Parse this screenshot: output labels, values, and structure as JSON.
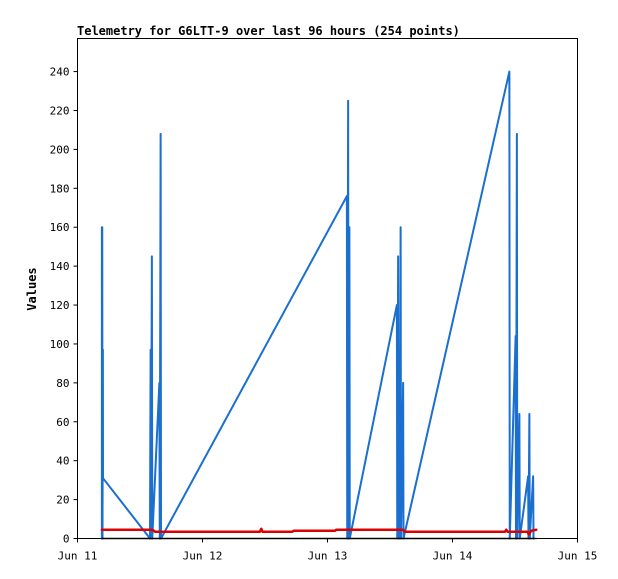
{
  "chart_data": {
    "type": "line",
    "title": "Telemetry for G6LTT-9 over last 96 hours (254 points)",
    "xlabel": "",
    "ylabel": "Values",
    "x_ticks": [
      "Jun 11",
      "Jun 12",
      "Jun 13",
      "Jun 14",
      "Jun 15"
    ],
    "y_ticks": [
      "0",
      "20",
      "40",
      "60",
      "80",
      "100",
      "120",
      "140",
      "160",
      "180",
      "200",
      "220",
      "240"
    ],
    "xlim": [
      0,
      4
    ],
    "ylim": [
      0,
      257
    ],
    "grid": false,
    "legend": false,
    "series": [
      {
        "color": "#1a6fcf",
        "points": [
          [
            0.195,
            0
          ],
          [
            0.195,
            160
          ],
          [
            0.198,
            160
          ],
          [
            0.2,
            0
          ],
          [
            0.203,
            97
          ],
          [
            0.204,
            31
          ],
          [
            0.58,
            0
          ],
          [
            0.585,
            97
          ],
          [
            0.588,
            0
          ],
          [
            0.595,
            145
          ],
          [
            0.598,
            0
          ],
          [
            0.655,
            80
          ],
          [
            0.658,
            0
          ],
          [
            0.665,
            208
          ],
          [
            0.668,
            0
          ],
          [
            2.155,
            176
          ],
          [
            2.158,
            0
          ],
          [
            2.165,
            225
          ],
          [
            2.168,
            0
          ],
          [
            2.175,
            160
          ],
          [
            2.178,
            0
          ],
          [
            2.555,
            120
          ],
          [
            2.558,
            0
          ],
          [
            2.565,
            145
          ],
          [
            2.568,
            0
          ],
          [
            2.575,
            80
          ],
          [
            2.578,
            0
          ],
          [
            2.585,
            160
          ],
          [
            2.588,
            0
          ],
          [
            2.605,
            80
          ],
          [
            2.608,
            0
          ],
          [
            3.455,
            240
          ],
          [
            3.458,
            0
          ],
          [
            3.505,
            104
          ],
          [
            3.508,
            0
          ],
          [
            3.515,
            208
          ],
          [
            3.518,
            0
          ],
          [
            3.535,
            64
          ],
          [
            3.538,
            0
          ],
          [
            3.605,
            32
          ],
          [
            3.608,
            0
          ],
          [
            3.615,
            64
          ],
          [
            3.618,
            0
          ],
          [
            3.645,
            32
          ],
          [
            3.648,
            0
          ]
        ]
      },
      {
        "color": "#000000",
        "points": [
          [
            0.195,
            0
          ],
          [
            3.67,
            0
          ]
        ]
      },
      {
        "color": "#dd0000",
        "points": [
          [
            0.195,
            4.5
          ],
          [
            0.6,
            4.5
          ],
          [
            0.62,
            3.5
          ],
          [
            1.46,
            3.5
          ],
          [
            1.47,
            5
          ],
          [
            1.48,
            3.5
          ],
          [
            1.72,
            3.5
          ],
          [
            1.73,
            4
          ],
          [
            2.06,
            4
          ],
          [
            2.07,
            4.5
          ],
          [
            2.6,
            4.5
          ],
          [
            2.62,
            3.5
          ],
          [
            3.42,
            3.5
          ],
          [
            3.43,
            4.5
          ],
          [
            3.44,
            3.5
          ],
          [
            3.6,
            3.5
          ],
          [
            3.61,
            2
          ],
          [
            3.63,
            4
          ],
          [
            3.67,
            4.5
          ]
        ]
      }
    ]
  }
}
